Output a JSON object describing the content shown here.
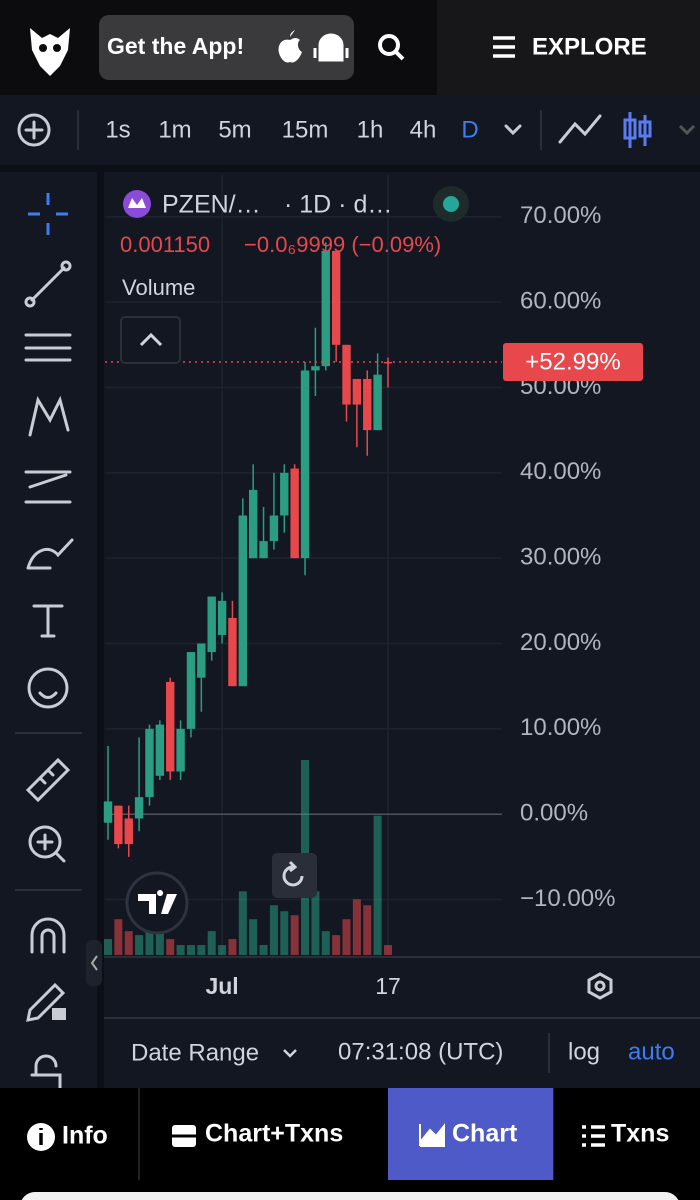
{
  "header": {
    "get_app": "Get the App!",
    "explore": "EXPLORE"
  },
  "toolbar": {
    "intervals": [
      "1s",
      "1m",
      "5m",
      "15m",
      "1h",
      "4h",
      "D"
    ]
  },
  "chart_data": {
    "type": "candlestick",
    "symbol": "PZEN/…",
    "interval_info": "· 1D · d…",
    "price": "0.001150",
    "change": "−0.0₆9999 (−0.09%)",
    "volume_label": "Volume",
    "up_color": "#2a9d82",
    "down_color": "#e8474b",
    "categories": [
      null,
      null,
      null,
      null,
      null,
      null,
      null,
      null,
      null,
      null,
      null,
      "Jul",
      null,
      null,
      null,
      null,
      null,
      null,
      null,
      null,
      null,
      null,
      null,
      null,
      null,
      null,
      null,
      "17"
    ],
    "open": [
      -1,
      1,
      -0.5,
      -0.5,
      2,
      4.5,
      15.5,
      5,
      10,
      16,
      19,
      21,
      23,
      15,
      30,
      30,
      32,
      35,
      40.5,
      30,
      52,
      52.5,
      66,
      55,
      51,
      51,
      45,
      53
    ],
    "high": [
      8,
      1,
      1,
      9,
      10.5,
      11,
      16,
      11,
      19,
      20,
      25.5,
      26,
      25,
      37,
      41,
      36,
      40,
      41,
      41,
      53,
      57,
      67,
      66,
      55,
      51,
      52,
      54,
      53.5
    ],
    "low": [
      -3,
      -4,
      -5,
      -2,
      1,
      4,
      4,
      4,
      9,
      12,
      18,
      20,
      15,
      15,
      30,
      30,
      31,
      33,
      30,
      28,
      49,
      52,
      53,
      46,
      43,
      42,
      45,
      50
    ],
    "close": [
      1.5,
      -3.5,
      -3.5,
      2,
      10,
      10.5,
      5,
      10,
      19,
      20,
      25.5,
      25,
      15,
      35,
      38,
      32,
      35,
      40,
      30,
      52,
      52.5,
      66,
      55,
      48,
      48,
      45,
      51.5,
      52.99
    ],
    "volume": [
      8,
      18,
      12,
      10,
      12,
      12,
      8,
      5,
      5,
      5,
      12,
      5,
      8,
      32,
      18,
      5,
      25,
      22,
      20,
      98,
      32,
      12,
      10,
      18,
      28,
      25,
      70,
      5
    ],
    "ylim": [
      -16.5,
      74.9
    ],
    "yticks": [
      {
        "value": -10,
        "label": "−10.00%"
      },
      {
        "value": 0,
        "label": "0.00%"
      },
      {
        "value": 10,
        "label": "10.00%"
      },
      {
        "value": 20,
        "label": "20.00%"
      },
      {
        "value": 30,
        "label": "30.00%"
      },
      {
        "value": 40,
        "label": "40.00%"
      },
      {
        "value": 50,
        "label": "50.00%"
      },
      {
        "value": 60,
        "label": "60.00%"
      },
      {
        "value": 70,
        "label": "70.00%"
      }
    ],
    "last": {
      "value": 52.99,
      "label": "+52.99%"
    },
    "grid": true
  },
  "footer": {
    "date_range": "Date Range",
    "time": "07:31:08 (UTC)",
    "log": "log",
    "auto": "auto"
  },
  "tabs": [
    "Info",
    "Chart+Txns",
    "Chart",
    "Txns"
  ]
}
